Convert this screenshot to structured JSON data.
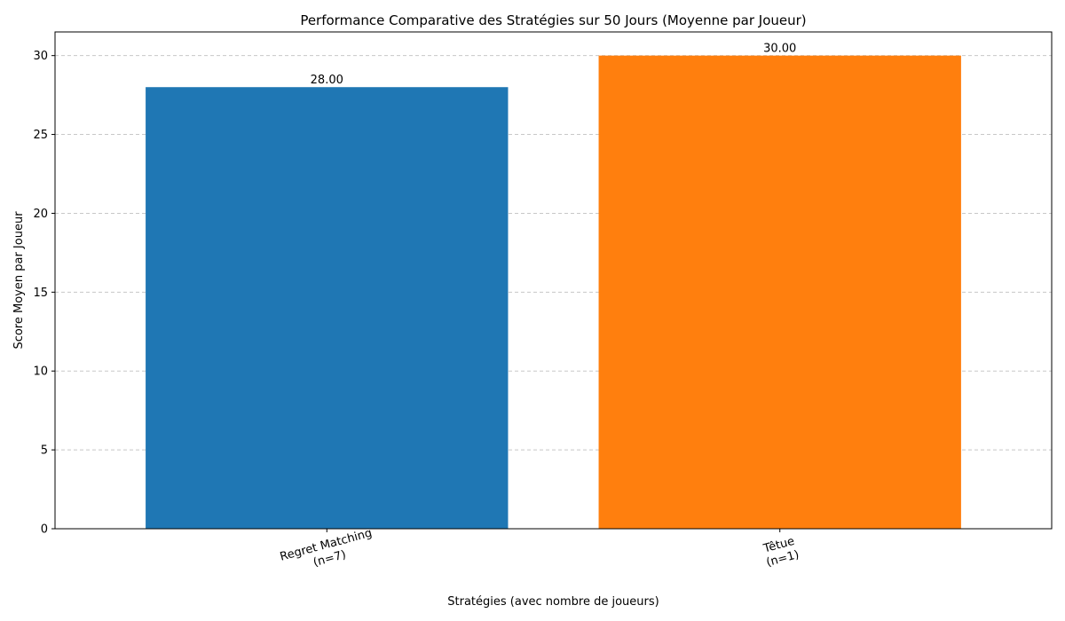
{
  "chart_data": {
    "type": "bar",
    "title": "Performance Comparative des Stratégies sur 50 Jours (Moyenne par Joueur)",
    "xlabel": "Stratégies (avec nombre de joueurs)",
    "ylabel": "Score Moyen par Joueur",
    "categories": [
      [
        "Regret Matching",
        "(n=7)"
      ],
      [
        "Têtue",
        "(n=1)"
      ]
    ],
    "values": [
      28.0,
      30.0
    ],
    "value_labels": [
      "28.00",
      "30.00"
    ],
    "colors": [
      "#1f77b4",
      "#ff7f0e"
    ],
    "ylim": [
      0,
      31.5
    ],
    "yticks": [
      0,
      5,
      10,
      15,
      20,
      25,
      30
    ],
    "ytick_labels": [
      "0",
      "5",
      "10",
      "15",
      "20",
      "25",
      "30"
    ],
    "grid": "y-dashed",
    "xtick_rotation": -15
  }
}
